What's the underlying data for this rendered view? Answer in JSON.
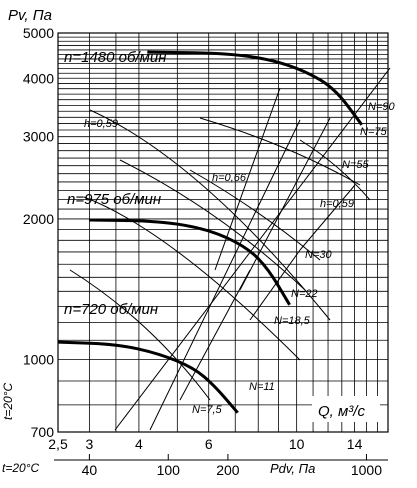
{
  "chart_data": {
    "type": "line",
    "title": "",
    "ylabel": "Pv, Па",
    "xlabel": "Q, м³/с",
    "x2label": "Pdv, Па",
    "temp_left": "t=20°C",
    "temp_bottom": "t=20°C",
    "y_scale": "log",
    "x_scale": "log",
    "ylim": [
      700,
      5000
    ],
    "xlim": [
      2.5,
      17
    ],
    "y_ticks": [
      {
        "v": 700,
        "label": "700"
      },
      {
        "v": 1000,
        "label": "1000"
      },
      {
        "v": 2000,
        "label": "2000"
      },
      {
        "v": 3000,
        "label": "3000"
      },
      {
        "v": 4000,
        "label": "4000"
      },
      {
        "v": 5000,
        "label": "5000"
      }
    ],
    "x_ticks": [
      {
        "v": 2.5,
        "label": "2,5"
      },
      {
        "v": 3,
        "label": "3"
      },
      {
        "v": 4,
        "label": "4"
      },
      {
        "v": 6,
        "label": "6"
      },
      {
        "v": 10,
        "label": "10"
      },
      {
        "v": 14,
        "label": "14"
      }
    ],
    "pdv_ticks": [
      {
        "v": 40,
        "label": "40"
      },
      {
        "v": 100,
        "label": "100"
      },
      {
        "v": 200,
        "label": "200"
      },
      {
        "v": 1000,
        "label": "1000"
      }
    ],
    "series": [
      {
        "name": "n=1480 об/мин",
        "points": [
          [
            4.2,
            4550
          ],
          [
            6.5,
            4530
          ],
          [
            8.5,
            4400
          ],
          [
            10.5,
            4150
          ],
          [
            12.5,
            3800
          ],
          [
            14.6,
            3180
          ]
        ]
      },
      {
        "name": "n=975 об/мин",
        "points": [
          [
            3.0,
            1990
          ],
          [
            4.5,
            1980
          ],
          [
            6.0,
            1900
          ],
          [
            7.5,
            1740
          ],
          [
            8.5,
            1560
          ],
          [
            9.6,
            1310
          ]
        ]
      },
      {
        "name": "n=720 об/мин",
        "points": [
          [
            2.5,
            1090
          ],
          [
            3.5,
            1080
          ],
          [
            4.5,
            1030
          ],
          [
            5.5,
            960
          ],
          [
            6.2,
            880
          ],
          [
            7.1,
            770
          ]
        ]
      }
    ],
    "efficiency_labels": [
      "h=0,59",
      "h=0,66",
      "h=0,59"
    ],
    "power_labels": [
      "N=90",
      "N=75",
      "N=55",
      "N=30",
      "N=22",
      "N=18,5",
      "N=11",
      "N=7,5"
    ]
  }
}
